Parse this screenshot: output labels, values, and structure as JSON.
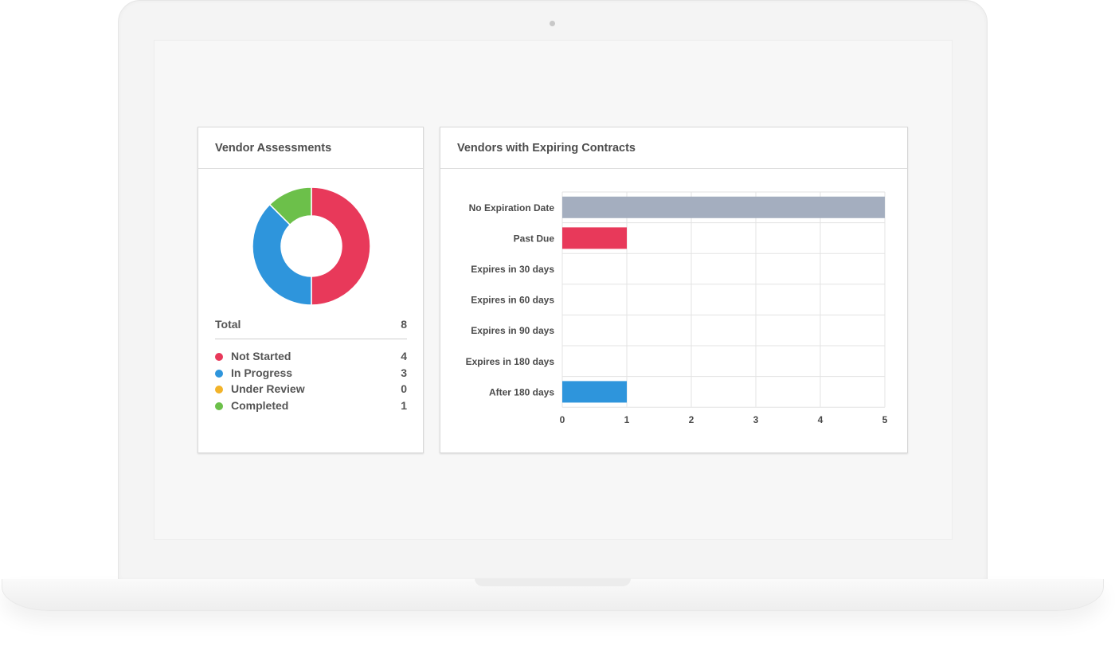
{
  "panels": {
    "assessments": {
      "title": "Vendor Assessments",
      "total_label": "Total",
      "total_value": "8",
      "legend": [
        {
          "label": "Not Started",
          "value": "4",
          "color": "#e8395a"
        },
        {
          "label": "In Progress",
          "value": "3",
          "color": "#2e95dc"
        },
        {
          "label": "Under Review",
          "value": "0",
          "color": "#f2b32a"
        },
        {
          "label": "Completed",
          "value": "1",
          "color": "#6cc04a"
        }
      ]
    },
    "contracts": {
      "title": "Vendors with Expiring Contracts"
    }
  },
  "chart_data": [
    {
      "type": "pie",
      "donut": true,
      "categories": [
        "Not Started",
        "In Progress",
        "Under Review",
        "Completed"
      ],
      "values": [
        4,
        3,
        0,
        1
      ],
      "colors": [
        "#e8395a",
        "#2e95dc",
        "#f2b32a",
        "#6cc04a"
      ]
    },
    {
      "type": "bar",
      "orientation": "horizontal",
      "categories": [
        "No Expiration Date",
        "Past Due",
        "Expires in 30 days",
        "Expires in 60 days",
        "Expires in 90 days",
        "Expires in 180 days",
        "After 180 days"
      ],
      "values": [
        5,
        1,
        0,
        0,
        0,
        0,
        1
      ],
      "colors": [
        "#a4aebf",
        "#e8395a",
        "#2e95dc",
        "#2e95dc",
        "#2e95dc",
        "#2e95dc",
        "#2e95dc"
      ],
      "xlim": [
        0,
        5
      ],
      "xticks": [
        "0",
        "1",
        "2",
        "3",
        "4",
        "5"
      ],
      "grid": true
    }
  ]
}
